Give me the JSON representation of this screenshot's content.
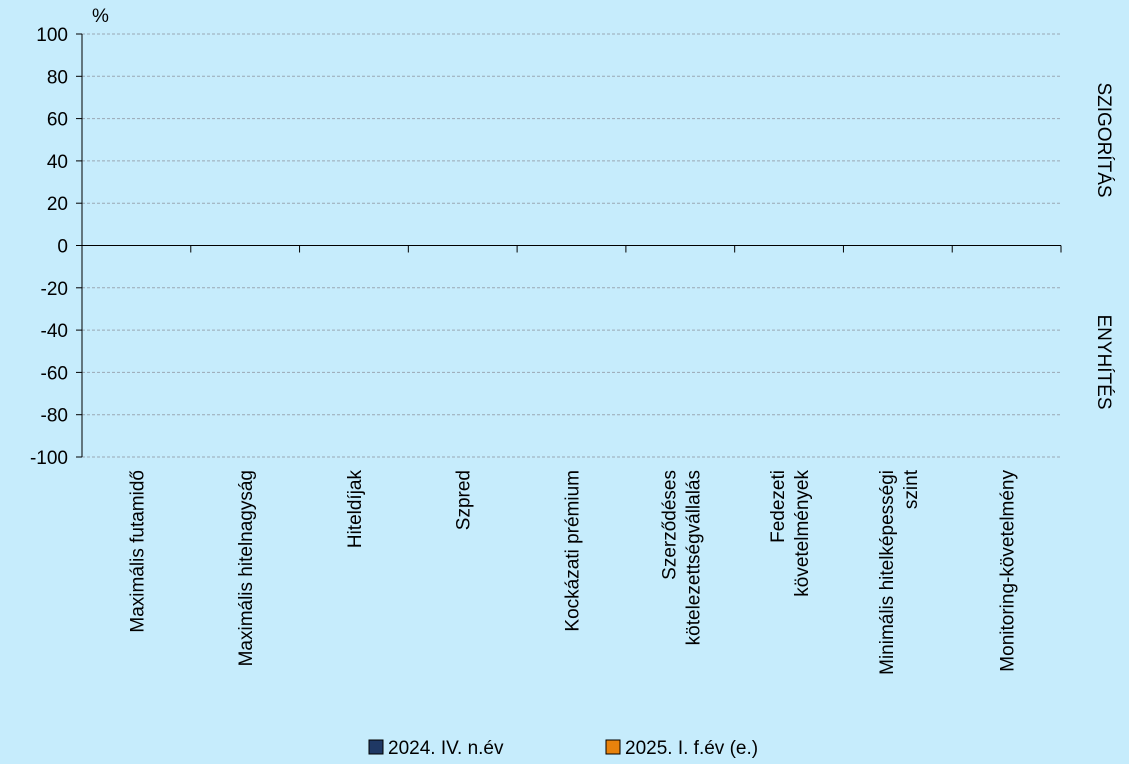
{
  "chart_data": {
    "type": "bar",
    "ylabel": "%",
    "ylim": [
      -100,
      100
    ],
    "yticks": [
      100,
      80,
      60,
      40,
      20,
      0,
      -20,
      -40,
      -60,
      -80,
      -100
    ],
    "categories": [
      [
        "Maximális futamidő"
      ],
      [
        "Maximális hitelnagyság"
      ],
      [
        "Hiteldíjak"
      ],
      [
        "Szpred"
      ],
      [
        "Kockázati prémium"
      ],
      [
        "Szerződéses",
        "kötelezettségvállalás"
      ],
      [
        "Fedezeti",
        "követelmények"
      ],
      [
        "Minimális hitelképességi",
        "szint"
      ],
      [
        "Monitoring-követelmény"
      ]
    ],
    "series": [
      {
        "name": "2024. IV. n.év",
        "color": "#1f3864",
        "values": [
          0,
          0,
          0,
          0,
          0,
          0,
          0,
          0,
          0
        ]
      },
      {
        "name": "2025. I. f.év (e.)",
        "color": "#e8820c",
        "values": [
          0,
          0,
          0,
          0,
          0,
          0,
          0,
          0,
          0
        ]
      }
    ],
    "side_labels": {
      "top": "SZIGORÍTÁS",
      "bottom": "ENYHÍTÉS"
    },
    "grid": true,
    "legend": "bottom"
  }
}
